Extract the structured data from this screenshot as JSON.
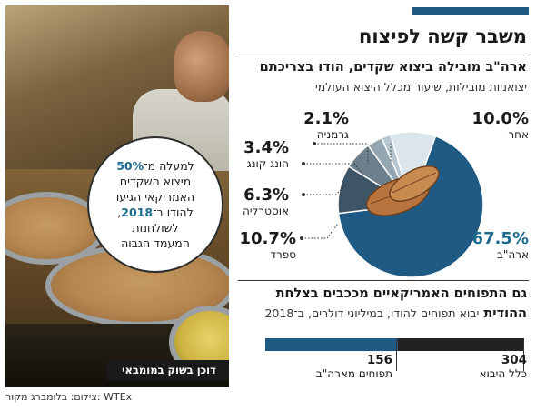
{
  "header": {
    "title": "משבר קשה לפיצוח",
    "subtitle": "ארה\"ב מובילה ביצוא שקדים, הודו בצריכתם",
    "note": "יצואניות מובילות, שיעור מכלל היצוא העולמי",
    "accent_color": "#1e5a84"
  },
  "photo": {
    "callout_lines": [
      "למעלה מ־50%",
      "מיצוא השקדים",
      "האמריקאי הגיעו",
      "להודו ב־2018,",
      "לשולחנות",
      "המעמד הגבוה"
    ],
    "callout_highlight_1": "50%",
    "callout_highlight_2": "2018",
    "caption": "דוכן בשוק במומבאי"
  },
  "footer": "צילום: בלומברג  מקור: WTEx",
  "chart_data": [
    {
      "type": "pie",
      "title": "ארה\"ב מובילה ביצוא שקדים, הודו בצריכתם",
      "subtitle": "יצואניות מובילות, שיעור מכלל היצוא העולמי",
      "unit": "%",
      "slices": [
        {
          "label": "ארה\"ב",
          "value": 67.5,
          "display": "67.5%",
          "color": "#1e5a84"
        },
        {
          "label": "ספרד",
          "value": 10.7,
          "display": "10.7%",
          "color": "#3d5566"
        },
        {
          "label": "אוסטרליה",
          "value": 6.3,
          "display": "6.3%",
          "color": "#6b7f8c"
        },
        {
          "label": "הונג קונג",
          "value": 3.4,
          "display": "3.4%",
          "color": "#93a6b2"
        },
        {
          "label": "גרמניה",
          "value": 2.1,
          "display": "2.1%",
          "color": "#b6c6d0"
        },
        {
          "label": "אחר",
          "value": 10.0,
          "display": "10.0%",
          "color": "#dbe5ec"
        }
      ]
    },
    {
      "type": "bar",
      "title": "גם התפוחים האמריקאיים מככבים בצלחת ההודית",
      "subtitle": "יבוא תפוחים להודו, במיליוני דולרים, ב־2018",
      "categories": [
        "תפוחים מארה\"ב",
        "כלל היבוא"
      ],
      "values": [
        156,
        304
      ],
      "display": [
        "156",
        "304"
      ],
      "colors": [
        "#1e5a84",
        "#222222"
      ],
      "xlim": [
        0,
        304
      ]
    }
  ]
}
